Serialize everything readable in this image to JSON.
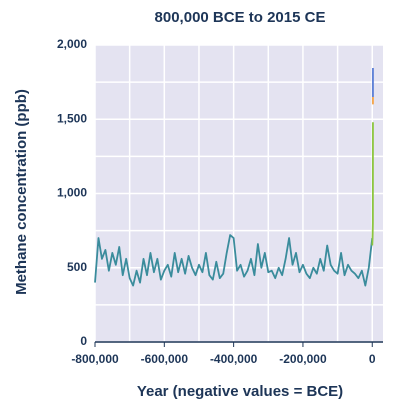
{
  "chart_data": {
    "type": "line",
    "title": "800,000 BCE to 2015 CE",
    "ylabel": "Methane concentration (ppb)",
    "xlabel": "Year (negative values = BCE)",
    "xlim": [
      -800000,
      31000
    ],
    "ylim": [
      0,
      2000
    ],
    "xticks": [
      {
        "value": -800000,
        "label": "-800,000"
      },
      {
        "value": -600000,
        "label": "-600,000"
      },
      {
        "value": -400000,
        "label": "-400,000"
      },
      {
        "value": -200000,
        "label": "-200,000"
      },
      0
    ],
    "yticks": [
      0,
      500,
      {
        "value": 1000,
        "label": "1,000"
      },
      {
        "value": 1500,
        "label": "1,500"
      },
      {
        "value": 2000,
        "label": "2,000"
      }
    ],
    "xgrid": [
      -700000,
      -500000,
      -300000,
      -100000
    ],
    "ygrid": [
      250,
      750,
      1250,
      1750
    ],
    "grid": true,
    "series": [
      {
        "color": "#3a8c9c",
        "x": [
          -800000,
          -790000,
          -780000,
          -770000,
          -760000,
          -750000,
          -740000,
          -730000,
          -720000,
          -710000,
          -700000,
          -690000,
          -680000,
          -670000,
          -660000,
          -650000,
          -640000,
          -630000,
          -620000,
          -610000,
          -600000,
          -590000,
          -580000,
          -570000,
          -560000,
          -550000,
          -540000,
          -530000,
          -520000,
          -510000,
          -500000,
          -490000,
          -480000,
          -470000,
          -460000,
          -450000,
          -440000,
          -430000,
          -420000,
          -410000,
          -400000,
          -390000,
          -380000,
          -370000,
          -360000,
          -350000,
          -340000,
          -330000,
          -320000,
          -310000,
          -300000,
          -290000,
          -280000,
          -270000,
          -260000,
          -250000,
          -240000,
          -230000,
          -220000,
          -210000,
          -200000,
          -190000,
          -180000,
          -170000,
          -160000,
          -150000,
          -140000,
          -130000,
          -120000,
          -110000,
          -100000,
          -90000,
          -80000,
          -70000,
          -60000,
          -50000,
          -40000,
          -30000,
          -20000,
          -10000,
          0
        ],
        "values": [
          400,
          700,
          560,
          620,
          480,
          600,
          520,
          640,
          450,
          560,
          430,
          380,
          480,
          400,
          560,
          450,
          600,
          470,
          560,
          420,
          480,
          520,
          440,
          600,
          470,
          560,
          460,
          580,
          500,
          450,
          520,
          470,
          600,
          450,
          420,
          540,
          430,
          460,
          600,
          720,
          700,
          480,
          520,
          440,
          480,
          560,
          450,
          660,
          500,
          600,
          470,
          480,
          430,
          500,
          450,
          560,
          700,
          520,
          600,
          470,
          520,
          460,
          430,
          500,
          460,
          560,
          480,
          650,
          520,
          480,
          460,
          600,
          450,
          520,
          480,
          460,
          430,
          480,
          380,
          500,
          700
        ]
      },
      {
        "color": "#8dc63f",
        "x": [
          0,
          1000,
          1800,
          1980
        ],
        "values": [
          650,
          700,
          800,
          1480
        ]
      },
      {
        "color": "#f5a54a",
        "x": [
          1980,
          1990
        ],
        "values": [
          1600,
          1650
        ]
      },
      {
        "color": "#5b7fd6",
        "x": [
          1985,
          2015
        ],
        "values": [
          1650,
          1845
        ]
      }
    ]
  }
}
